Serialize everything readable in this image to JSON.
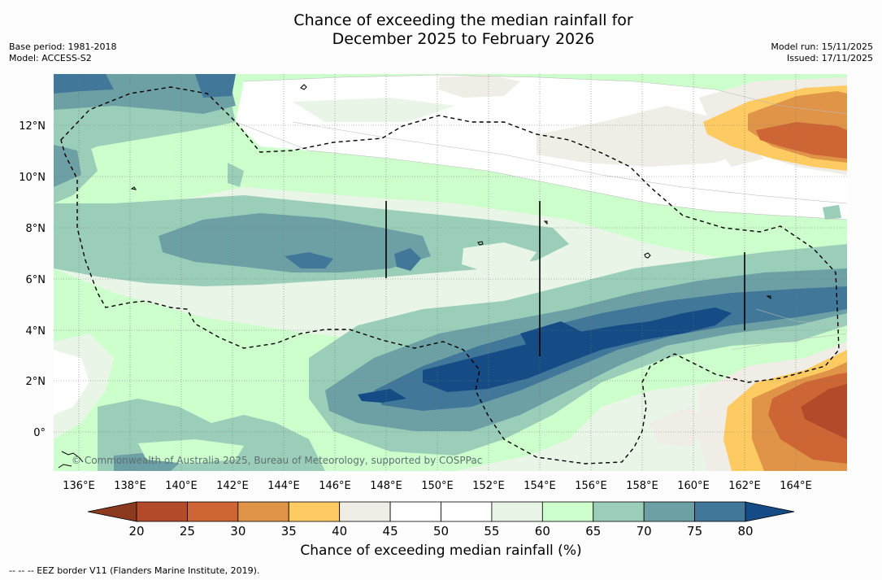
{
  "title": {
    "line1": "Chance of exceeding the median rainfall for",
    "line2": "December 2025 to February 2026"
  },
  "meta_left": {
    "base_period": "Base period: 1981-2018",
    "model": "Model: ACCESS-S2"
  },
  "meta_right": {
    "model_run": "Model run: 15/11/2025",
    "issued": "Issued: 17/11/2025"
  },
  "map": {
    "copyright": "© Commonwealth of Australia 2025, Bureau of Meteorology, supported by COSPPac",
    "lat_labels": [
      "12°N",
      "10°N",
      "8°N",
      "6°N",
      "4°N",
      "2°N",
      "0°"
    ],
    "lon_labels": [
      "136°E",
      "138°E",
      "140°E",
      "142°E",
      "144°E",
      "146°E",
      "148°E",
      "150°E",
      "152°E",
      "154°E",
      "156°E",
      "158°E",
      "160°E",
      "162°E",
      "164°E"
    ],
    "colors": {
      "c20": "#8b3a1e",
      "c25": "#b34a2a",
      "c30": "#cd6535",
      "c35": "#e09448",
      "c40": "#fdcb62",
      "c45": "#f0ece6",
      "c50": "#ffffff",
      "c55": "#ffffff",
      "c60": "#e9f5e6",
      "c65": "#ccffcc",
      "c70": "#9bceb9",
      "c75": "#6da0a4",
      "c80": "#417799",
      "c85": "#164c85"
    }
  },
  "colorbar": {
    "ticks": [
      "20",
      "25",
      "30",
      "35",
      "40",
      "45",
      "50",
      "55",
      "60",
      "65",
      "70",
      "75",
      "80"
    ],
    "label": "Chance of exceeding median rainfall (%)"
  },
  "footnote": "--  --  -- EEZ border V11 (Flanders Marine Institute, 2019)."
}
